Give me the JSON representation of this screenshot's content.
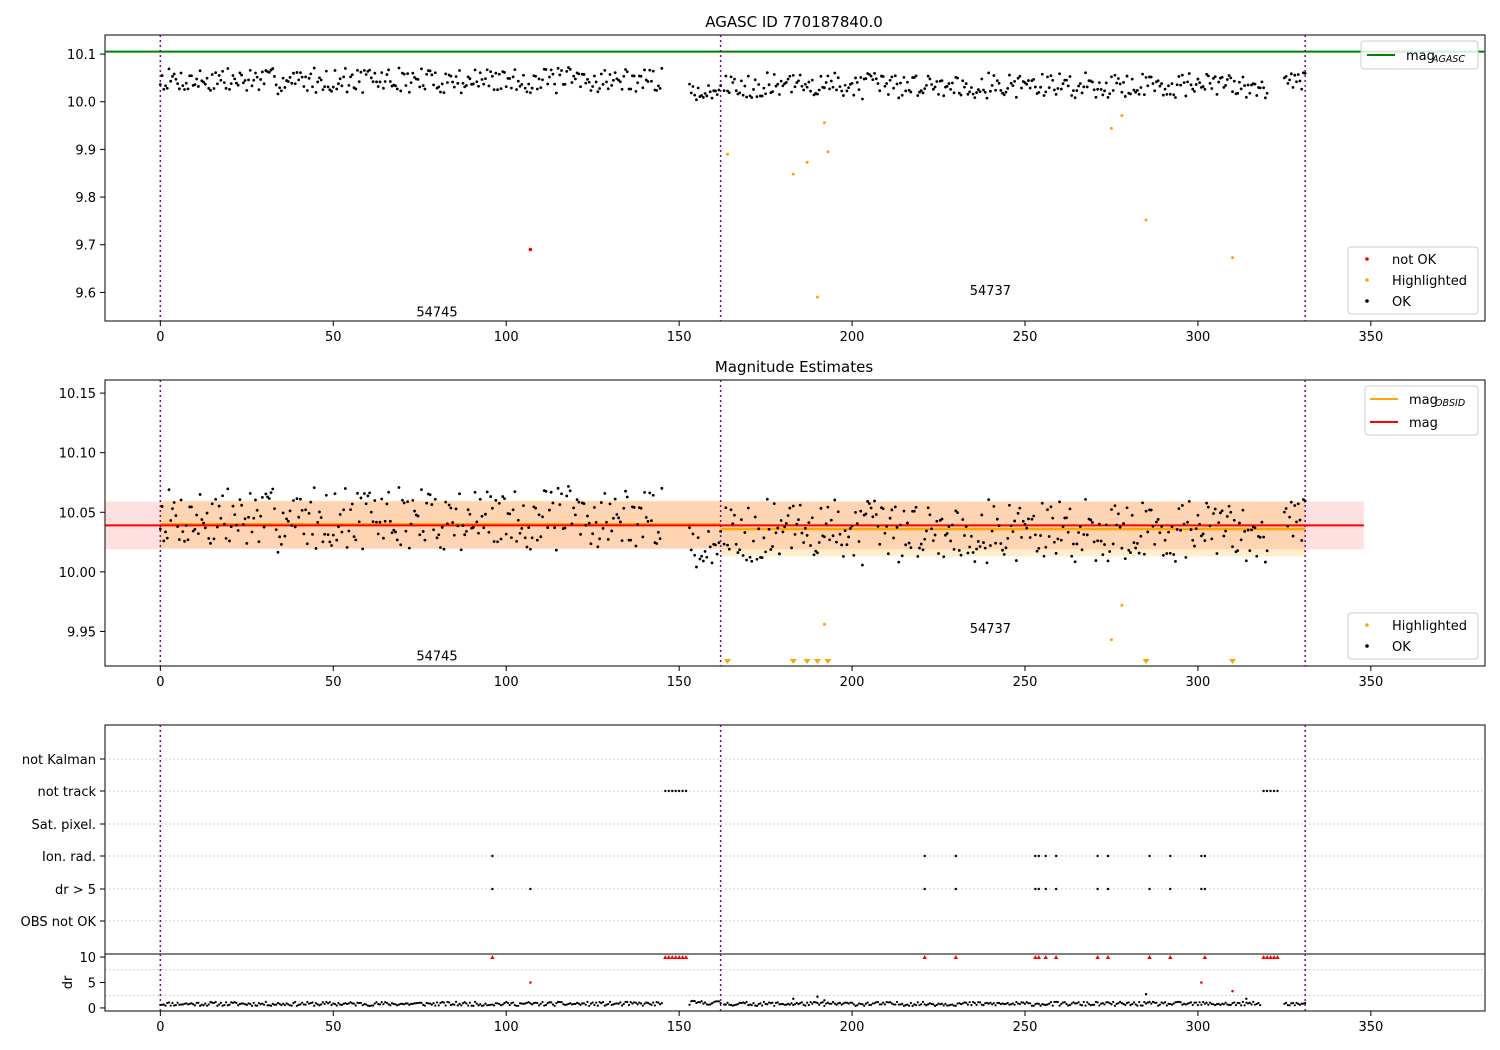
{
  "chart_data": [
    {
      "type": "scatter",
      "title": "AGASC ID 770187840.0",
      "xlim": [
        -16,
        383
      ],
      "ylim": [
        9.54,
        10.14
      ],
      "xticks": [
        0,
        50,
        100,
        150,
        200,
        250,
        300,
        350
      ],
      "yticks": [
        9.6,
        9.7,
        9.8,
        9.9,
        10.0,
        10.1
      ],
      "ytick_labels": [
        "9.6",
        "9.7",
        "9.8",
        "9.9",
        "10.0",
        "10.1"
      ],
      "obsid_boundaries": [
        0,
        162,
        331
      ],
      "obsid_labels": [
        {
          "text": "54745",
          "x": 80,
          "y": 9.56
        },
        {
          "text": "54737",
          "x": 240,
          "y": 9.605
        }
      ],
      "hlines": [
        {
          "name": "mag_AGASC",
          "y": 10.105,
          "color": "#008000"
        }
      ],
      "legend_line": {
        "label": "mag",
        "sub": "AGASC",
        "color": "#008000"
      },
      "legend_markers": [
        {
          "label": "not OK",
          "color": "#ff0000"
        },
        {
          "label": "Highlighted",
          "color": "#ffa500"
        },
        {
          "label": "OK",
          "color": "#000000"
        }
      ],
      "ok_seed": 7,
      "ok_segments": [
        {
          "x0": 0,
          "x1": 145,
          "base": 10.045,
          "spread": 0.025
        },
        {
          "x0": 153,
          "x1": 162,
          "base": 10.02,
          "spread": 0.015
        },
        {
          "x0": 163,
          "x1": 320,
          "base": 10.035,
          "spread": 0.025
        },
        {
          "x0": 325,
          "x1": 331,
          "base": 10.045,
          "spread": 0.015
        }
      ],
      "highlighted": [
        [
          164,
          9.89
        ],
        [
          183,
          9.848
        ],
        [
          187,
          9.873
        ],
        [
          190,
          9.59
        ],
        [
          192,
          9.956
        ],
        [
          193,
          9.895
        ],
        [
          275,
          9.944
        ],
        [
          278,
          9.971
        ],
        [
          285,
          9.752
        ],
        [
          310,
          9.673
        ]
      ],
      "not_ok": [
        [
          107,
          9.69
        ]
      ]
    },
    {
      "type": "scatter",
      "title": "Magnitude Estimates",
      "xlim": [
        -16,
        383
      ],
      "ylim": [
        9.921,
        10.161
      ],
      "xticks": [
        0,
        50,
        100,
        150,
        200,
        250,
        300,
        350
      ],
      "yticks": [
        9.95,
        10.0,
        10.05,
        10.1,
        10.15
      ],
      "ytick_labels": [
        "9.95",
        "10.00",
        "10.05",
        "10.10",
        "10.15"
      ],
      "obsid_boundaries": [
        0,
        162,
        331
      ],
      "obsid_labels": [
        {
          "text": "54745",
          "x": 80,
          "y": 9.93
        },
        {
          "text": "54737",
          "x": 240,
          "y": 9.953
        }
      ],
      "mag_line": {
        "y": 10.039,
        "band": [
          10.019,
          10.059
        ],
        "x0": -16,
        "x1": 348,
        "color": "#ff0000"
      },
      "obsid_lines": [
        {
          "x0": 0,
          "x1": 162,
          "y": 10.04,
          "band": [
            10.02,
            10.06
          ]
        },
        {
          "x0": 162,
          "x1": 331,
          "y": 10.036,
          "band": [
            10.013,
            10.059
          ]
        }
      ],
      "legend_lines": [
        {
          "label": "mag",
          "sub": "OBSID",
          "color": "#ffa500"
        },
        {
          "label": "mag",
          "sub": "",
          "color": "#ff0000"
        }
      ],
      "legend_markers": [
        {
          "label": "Highlighted",
          "color": "#ffa500"
        },
        {
          "label": "OK",
          "color": "#000000"
        }
      ],
      "highlighted": [
        [
          275,
          9.943
        ],
        [
          278,
          9.972
        ],
        [
          192,
          9.956
        ]
      ],
      "below_range_markers": [
        164,
        183,
        187,
        190,
        193,
        285,
        310
      ],
      "ok_seed": 7,
      "ok_segments": [
        {
          "x0": 0,
          "x1": 145,
          "base": 10.045,
          "spread": 0.025
        },
        {
          "x0": 153,
          "x1": 162,
          "base": 10.02,
          "spread": 0.015
        },
        {
          "x0": 163,
          "x1": 320,
          "base": 10.035,
          "spread": 0.025
        },
        {
          "x0": 325,
          "x1": 331,
          "base": 10.045,
          "spread": 0.015
        }
      ]
    },
    {
      "type": "scatter",
      "title": "",
      "xlim": [
        -16,
        383
      ],
      "obsid_boundaries": [
        0,
        162,
        331
      ],
      "flag_rows": [
        "not Kalman",
        "not track",
        "Sat. pixel.",
        "Ion. rad.",
        "dr > 5",
        "OBS not OK"
      ],
      "flags": {
        "not track": [
          146,
          147,
          148,
          149,
          150,
          151,
          152,
          319,
          320,
          321,
          322,
          323
        ],
        "Ion. rad.": [
          96,
          221,
          230,
          253,
          254,
          256,
          259,
          271,
          274,
          286,
          292,
          301,
          302
        ],
        "dr > 5": [
          96,
          107,
          221,
          230,
          253,
          254,
          256,
          259,
          271,
          274,
          286,
          292,
          301,
          302
        ]
      }
    },
    {
      "type": "scatter",
      "title": "",
      "xlim": [
        -16,
        383
      ],
      "ylim": [
        -0.6,
        10.6
      ],
      "ylabel": "dr",
      "yticks": [
        0,
        5,
        10
      ],
      "ytick_labels": [
        "0",
        "5",
        "10"
      ],
      "obsid_boundaries": [
        0,
        162,
        331
      ],
      "dr_clipped": [
        96,
        146,
        147,
        148,
        149,
        150,
        151,
        152,
        221,
        230,
        253,
        254,
        256,
        259,
        271,
        274,
        286,
        292,
        302,
        319,
        320,
        321,
        322,
        323
      ],
      "dr_red": [
        [
          107,
          5.0
        ],
        [
          301,
          5.0
        ],
        [
          310,
          3.3
        ]
      ],
      "dr_black": [
        [
          183,
          1.8
        ],
        [
          190,
          2.2
        ],
        [
          192,
          1.5
        ],
        [
          285,
          2.7
        ],
        [
          314,
          1.8
        ]
      ],
      "dr_ok_segments": [
        {
          "x0": 0,
          "x1": 145,
          "base": 0.8,
          "spread": 0.4
        },
        {
          "x0": 153,
          "x1": 162,
          "base": 1.0,
          "spread": 0.4
        },
        {
          "x0": 163,
          "x1": 318,
          "base": 0.8,
          "spread": 0.4
        },
        {
          "x0": 325,
          "x1": 331,
          "base": 0.8,
          "spread": 0.3
        }
      ]
    }
  ]
}
